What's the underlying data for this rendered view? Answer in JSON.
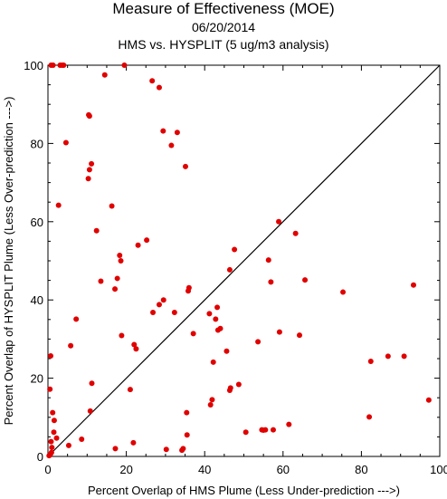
{
  "chart_data": {
    "type": "scatter",
    "title": "Measure of Effectiveness (MOE)",
    "subtitle": "06/20/2014",
    "subtitle2": "HMS vs. HYSPLIT  (5 ug/m3 analysis)",
    "xlabel": "Percent Overlap of HMS Plume (Less Under-prediction --->)",
    "ylabel": "Percent Overlap of HYSPLIT Plume (Less Over-prediction --->)",
    "xlim": [
      0,
      100
    ],
    "ylim": [
      0,
      100
    ],
    "xticks": [
      "0",
      "20",
      "40",
      "60",
      "80",
      "100"
    ],
    "yticks": [
      "0",
      "20",
      "40",
      "60",
      "80",
      "100"
    ],
    "grid": false,
    "diagonal": true,
    "point_color": "#e00000",
    "points": [
      [
        0.3,
        0.2
      ],
      [
        0.6,
        0.5
      ],
      [
        0.9,
        1.0
      ],
      [
        1.0,
        2.3
      ],
      [
        0.8,
        3.8
      ],
      [
        1.5,
        6.2
      ],
      [
        2.2,
        4.7
      ],
      [
        0.5,
        17.2
      ],
      [
        0.7,
        25.7
      ],
      [
        1.2,
        11.2
      ],
      [
        1.6,
        9.2
      ],
      [
        5.3,
        2.8
      ],
      [
        8.6,
        4.4
      ],
      [
        5.8,
        28.3
      ],
      [
        7.2,
        35.1
      ],
      [
        10.8,
        11.6
      ],
      [
        11.2,
        18.7
      ],
      [
        13.5,
        44.8
      ],
      [
        12.4,
        57.7
      ],
      [
        17.1,
        42.8
      ],
      [
        17.7,
        45.5
      ],
      [
        18.6,
        50.0
      ],
      [
        18.3,
        51.4
      ],
      [
        18.8,
        30.9
      ],
      [
        21.0,
        17.1
      ],
      [
        22.0,
        28.6
      ],
      [
        22.5,
        27.5
      ],
      [
        23.0,
        54.0
      ],
      [
        25.2,
        55.3
      ],
      [
        26.8,
        36.8
      ],
      [
        28.4,
        38.8
      ],
      [
        29.5,
        40.0
      ],
      [
        32.3,
        36.8
      ],
      [
        34.5,
        2.0
      ],
      [
        34.2,
        1.6
      ],
      [
        35.4,
        11.2
      ],
      [
        35.5,
        5.5
      ],
      [
        35.8,
        42.3
      ],
      [
        36.0,
        43.1
      ],
      [
        37.1,
        31.4
      ],
      [
        41.2,
        36.5
      ],
      [
        41.5,
        13.2
      ],
      [
        41.9,
        14.5
      ],
      [
        42.2,
        24.1
      ],
      [
        42.8,
        35.1
      ],
      [
        43.2,
        38.1
      ],
      [
        43.4,
        32.3
      ],
      [
        44.0,
        32.7
      ],
      [
        45.6,
        26.9
      ],
      [
        46.4,
        16.9
      ],
      [
        46.6,
        17.5
      ],
      [
        46.4,
        47.7
      ],
      [
        47.6,
        52.9
      ],
      [
        48.7,
        18.4
      ],
      [
        50.5,
        6.2
      ],
      [
        53.6,
        29.3
      ],
      [
        54.6,
        6.8
      ],
      [
        55.0,
        6.7
      ],
      [
        55.5,
        6.8
      ],
      [
        56.3,
        50.2
      ],
      [
        56.9,
        44.6
      ],
      [
        57.5,
        6.8
      ],
      [
        58.9,
        60.0
      ],
      [
        59.1,
        31.8
      ],
      [
        61.5,
        8.2
      ],
      [
        63.2,
        57.0
      ],
      [
        64.2,
        31.0
      ],
      [
        65.6,
        45.1
      ],
      [
        75.3,
        42.0
      ],
      [
        82.0,
        10.1
      ],
      [
        82.4,
        24.3
      ],
      [
        86.8,
        25.6
      ],
      [
        90.9,
        25.6
      ],
      [
        93.3,
        43.8
      ],
      [
        97.2,
        14.4
      ],
      [
        2.7,
        64.2
      ],
      [
        4.6,
        80.2
      ],
      [
        10.3,
        71.0
      ],
      [
        10.6,
        73.3
      ],
      [
        11.1,
        74.8
      ],
      [
        10.6,
        87.0
      ],
      [
        10.4,
        87.3
      ],
      [
        14.5,
        97.5
      ],
      [
        16.3,
        64.0
      ],
      [
        19.5,
        100.0
      ],
      [
        26.6,
        96.0
      ],
      [
        28.4,
        94.3
      ],
      [
        29.4,
        83.2
      ],
      [
        31.5,
        79.5
      ],
      [
        33.0,
        82.8
      ],
      [
        35.1,
        74.1
      ],
      [
        0.8,
        100.0
      ],
      [
        1.3,
        100.0
      ],
      [
        3.1,
        100.0
      ],
      [
        3.6,
        100.0
      ],
      [
        4.0,
        100.0
      ],
      [
        21.8,
        3.5
      ],
      [
        17.2,
        2.0
      ],
      [
        30.2,
        1.8
      ]
    ]
  }
}
